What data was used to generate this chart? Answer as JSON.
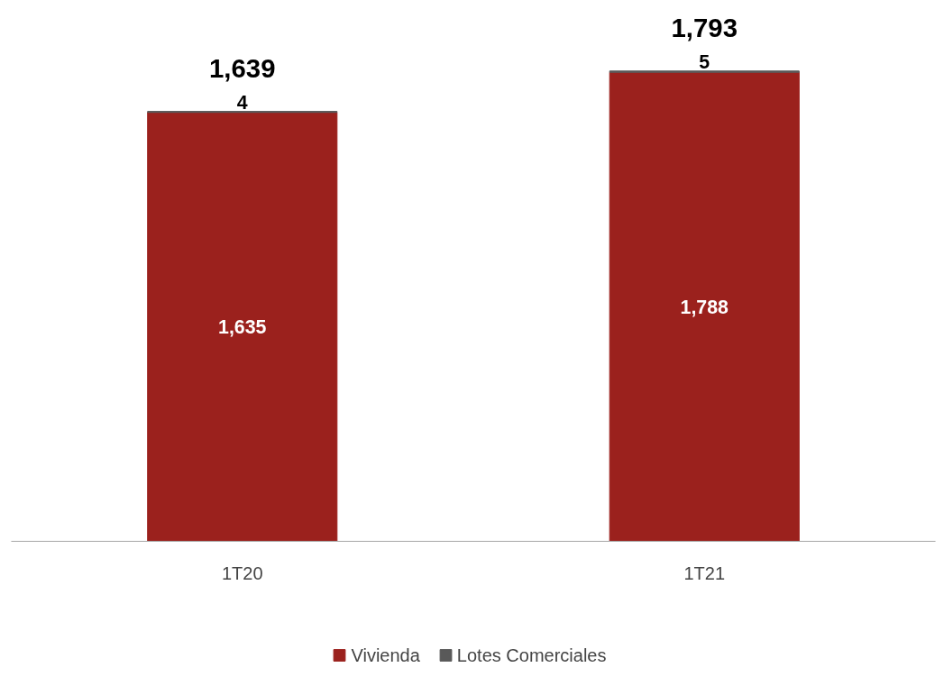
{
  "chart_data": {
    "type": "bar",
    "stacked": true,
    "categories": [
      "1T20",
      "1T21"
    ],
    "legend": "bottom",
    "grid": false,
    "series": [
      {
        "name": "Vivienda",
        "color": "#9b211d",
        "values": [
          1635,
          1788
        ],
        "value_labels": [
          "1,635",
          "1,788"
        ]
      },
      {
        "name": "Lotes Comerciales",
        "color": "#595959",
        "values": [
          4,
          5
        ],
        "value_labels": [
          "4",
          "5"
        ]
      }
    ],
    "totals": [
      "1,639",
      "1,793"
    ]
  }
}
